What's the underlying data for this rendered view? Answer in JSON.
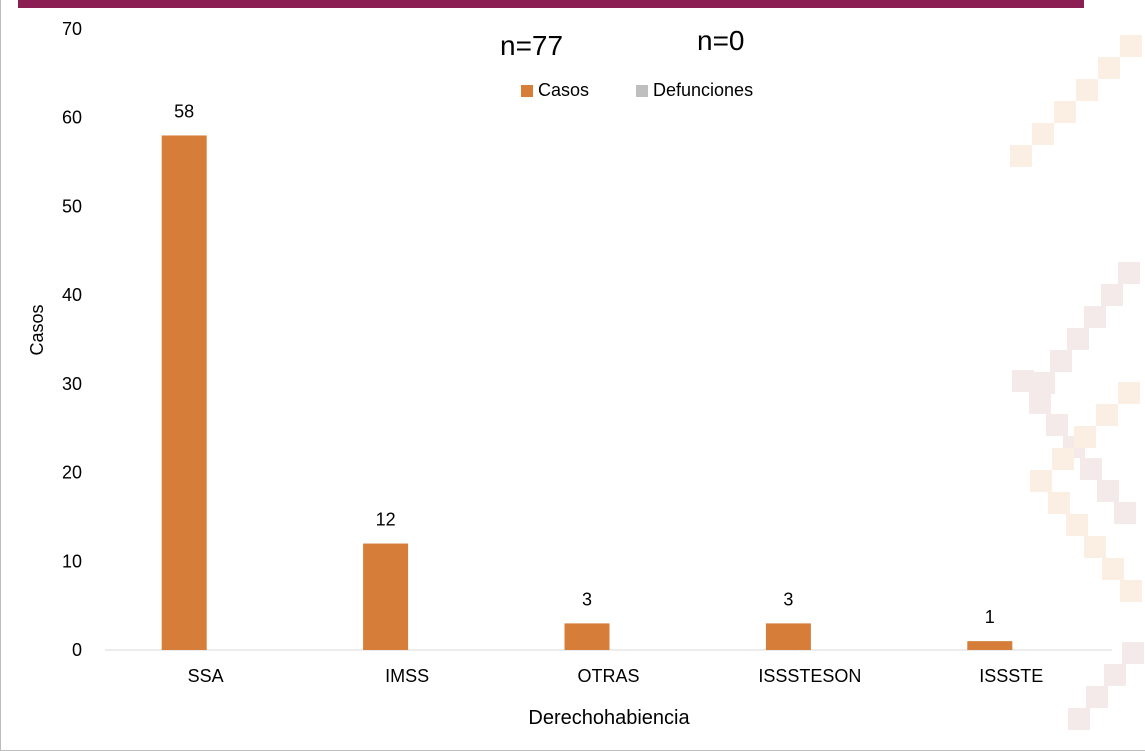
{
  "annotations": {
    "n_casos": "n=77",
    "n_defunciones": "n=0"
  },
  "colors": {
    "header_bar": "#8b1f53",
    "casos": "#d67d39",
    "defunciones": "#bfbfbf",
    "pattern_light": "#f4eaea",
    "pattern_peach": "#fbeee2"
  },
  "chart_data": {
    "type": "bar",
    "title": "",
    "xlabel": "Derechohabiencia",
    "ylabel": "Casos",
    "ylim": [
      0,
      70
    ],
    "yticks": [
      "0",
      "10",
      "20",
      "30",
      "40",
      "50",
      "60",
      "70"
    ],
    "categories": [
      "SSA",
      "IMSS",
      "OTRAS",
      "ISSSTESON",
      "ISSSTE"
    ],
    "series": [
      {
        "name": "Casos",
        "values": [
          58,
          12,
          3,
          3,
          1
        ],
        "labels": [
          "58",
          "12",
          "3",
          "3",
          "1"
        ]
      },
      {
        "name": "Defunciones",
        "values": [
          0,
          0,
          0,
          0,
          0
        ]
      }
    ],
    "legend": "top-center",
    "grid": false
  }
}
